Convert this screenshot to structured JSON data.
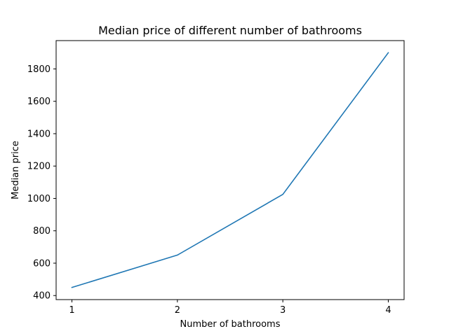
{
  "chart_data": {
    "type": "line",
    "title": "Median price of different number of bathrooms",
    "xlabel": "Number of bathrooms",
    "ylabel": "Median price",
    "x": [
      1,
      2,
      3,
      4
    ],
    "xticks": [
      "1",
      "2",
      "3",
      "4"
    ],
    "yticks": [
      400,
      600,
      800,
      1000,
      1200,
      1400,
      1600,
      1800
    ],
    "xlim": [
      0.85,
      4.15
    ],
    "ylim": [
      375,
      1975
    ],
    "grid": false,
    "series": [
      {
        "values": [
          450,
          650,
          1025,
          1900
        ],
        "color": "#1f77b4"
      }
    ]
  }
}
